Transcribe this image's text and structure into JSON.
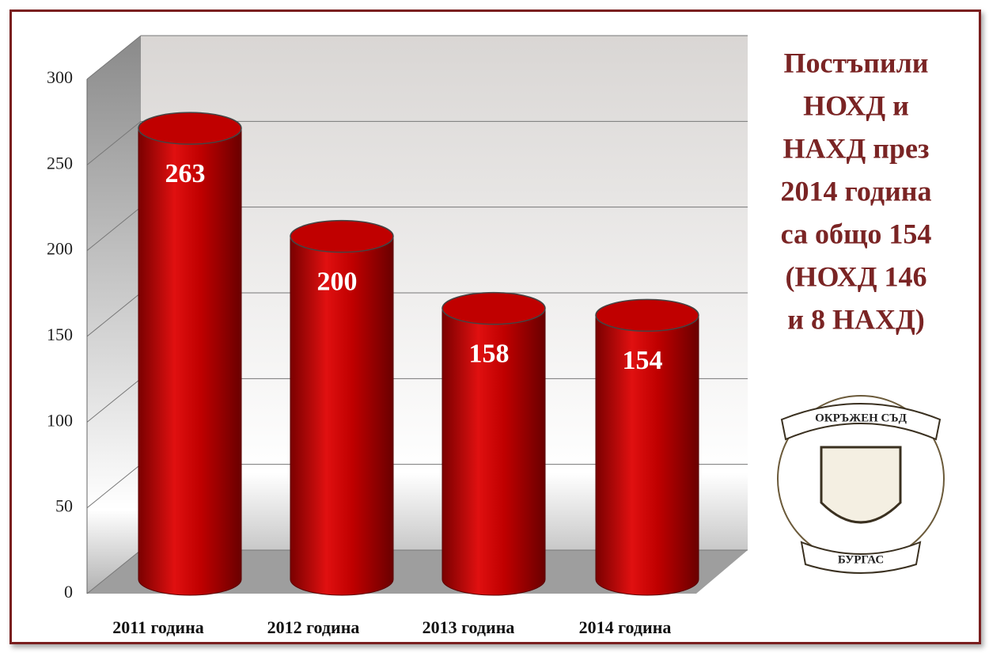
{
  "chart_data": {
    "type": "bar",
    "title": [
      "Постъпили",
      "НОХД и",
      "НАХД през",
      "2014 година",
      "са общо 154",
      "(НОХД 146",
      "и 8 НАХД)"
    ],
    "categories": [
      "2011 година",
      "2012 година",
      "2013 година",
      "2014 година"
    ],
    "values": [
      263,
      200,
      158,
      154
    ],
    "color": "#c00000",
    "ylim": [
      0,
      300
    ],
    "yticks": [
      0,
      50,
      100,
      150,
      200,
      250,
      300
    ],
    "grid": true,
    "logo": {
      "top": "ОКРЪЖЕН СЪД",
      "bottom": "БУРГАС"
    }
  }
}
